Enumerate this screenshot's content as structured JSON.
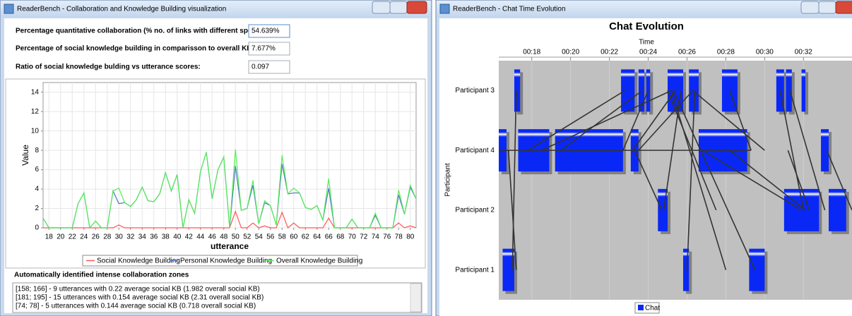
{
  "left_window": {
    "title": "ReaderBench - Collaboration and Knowledge Building visualization",
    "fields": [
      {
        "label": "Percentage quantitative collaboration (% no. of links with different speakers):",
        "value": "54.639%"
      },
      {
        "label": "Percentage of social knowledge building in comparisson to overall KB:",
        "value": "7.677%"
      },
      {
        "label": "Ratio of social knowledge bulding vs utterance scores:",
        "value": "0.097"
      }
    ],
    "chart": {
      "type": "line",
      "x_label": "utterance",
      "y_label": "Value",
      "xlim": [
        17,
        81
      ],
      "ylim": [
        0,
        15
      ],
      "xticks": [
        18,
        20,
        22,
        24,
        26,
        28,
        30,
        32,
        34,
        36,
        38,
        40,
        42,
        44,
        46,
        48,
        50,
        52,
        54,
        56,
        58,
        60,
        62,
        64,
        66,
        68,
        70,
        72,
        74,
        76,
        78,
        80
      ],
      "yticks": [
        0,
        2,
        4,
        6,
        8,
        10,
        12,
        14
      ],
      "grid": true,
      "x": [
        17,
        18,
        19,
        20,
        21,
        22,
        23,
        24,
        25,
        26,
        27,
        28,
        29,
        30,
        31,
        32,
        33,
        34,
        35,
        36,
        37,
        38,
        39,
        40,
        41,
        42,
        43,
        44,
        45,
        46,
        47,
        48,
        49,
        50,
        51,
        52,
        53,
        54,
        55,
        56,
        57,
        58,
        59,
        60,
        61,
        62,
        63,
        64,
        65,
        66,
        67,
        68,
        69,
        70,
        71,
        72,
        73,
        74,
        75,
        76,
        77,
        78,
        79,
        80,
        81
      ],
      "series": [
        {
          "name": "Social Knowledge Building",
          "color": "#ff5555",
          "values": [
            0,
            0,
            0,
            0,
            0,
            0,
            0,
            0,
            0,
            0,
            0,
            0,
            0,
            0.3,
            0,
            0,
            0,
            0,
            0,
            0,
            0,
            0,
            0,
            0,
            0,
            0,
            0,
            0,
            0,
            0,
            0,
            0,
            0,
            1.7,
            0,
            0,
            0.5,
            0,
            0.2,
            0,
            0,
            1.6,
            0,
            0.5,
            0,
            0,
            0,
            0,
            0,
            1.0,
            0,
            0,
            0,
            0,
            0,
            0,
            0,
            0,
            0,
            0,
            0,
            0.5,
            0,
            0.2,
            0
          ]
        },
        {
          "name": "Personal Knowledge Building",
          "color": "#4f73c6",
          "values": [
            1.0,
            0,
            0,
            0,
            0,
            0,
            2.5,
            3.6,
            0,
            0.7,
            0,
            0,
            3.8,
            2.5,
            2.6,
            2.2,
            2.9,
            4.2,
            2.8,
            2.7,
            3.5,
            5.7,
            3.8,
            5.5,
            0,
            2.9,
            1.5,
            5.8,
            7.8,
            3.0,
            6.0,
            7.3,
            0,
            6.4,
            1.8,
            2.0,
            4.4,
            0.4,
            2.6,
            2.3,
            0.3,
            6.6,
            3.5,
            3.6,
            3.6,
            2.1,
            1.9,
            2.3,
            0.8,
            4.1,
            0,
            0,
            0,
            0.9,
            0,
            0,
            0,
            1.3,
            0,
            0,
            0,
            3.4,
            1.4,
            4.2,
            3.0
          ]
        },
        {
          "name": "Overall Knowledge Building",
          "color": "#55ee55",
          "values": [
            1.0,
            0,
            0,
            0,
            0,
            0,
            2.5,
            3.6,
            0,
            0.7,
            0,
            0,
            3.8,
            4.1,
            2.6,
            2.2,
            2.9,
            4.2,
            2.8,
            2.7,
            3.5,
            5.7,
            3.8,
            5.5,
            0,
            2.9,
            1.5,
            5.8,
            7.8,
            3.0,
            6.0,
            7.3,
            0,
            8.1,
            1.8,
            2.0,
            4.9,
            0.4,
            2.8,
            2.3,
            0.3,
            7.5,
            3.5,
            4.1,
            3.6,
            2.1,
            1.9,
            2.3,
            0.8,
            5.1,
            0,
            0,
            0,
            0.9,
            0,
            0,
            0,
            1.5,
            0,
            0,
            0,
            3.9,
            1.4,
            4.4,
            3.0
          ]
        }
      ]
    },
    "zones_title": "Automatically identified intense collaboration zones",
    "zones": [
      "[158; 166] - 9 utterances with 0.22 average social KB (1.982 overall social KB)",
      "[181; 195] - 15 utterances with 0.154 average social KB (2.31 overall social KB)",
      "[74; 78] - 5 utterances with 0.144 average social KB (0.718 overall social KB)"
    ]
  },
  "right_window": {
    "title": "ReaderBench - Chat Time Evolution",
    "chart": {
      "type": "timeline",
      "title": "Chat Evolution",
      "x_label": "Time",
      "y_label": "Participant",
      "participants": [
        "Participant 3",
        "Participant 4",
        "Participant 2",
        "Participant 1"
      ],
      "xlim": [
        16.3,
        34.5
      ],
      "xticks": [
        {
          "value": 18,
          "label": "00:18"
        },
        {
          "value": 20,
          "label": "00:20"
        },
        {
          "value": 22,
          "label": "00:22"
        },
        {
          "value": 24,
          "label": "00:24"
        },
        {
          "value": 26,
          "label": "00:26"
        },
        {
          "value": 28,
          "label": "00:28"
        },
        {
          "value": 30,
          "label": "00:30"
        },
        {
          "value": 32,
          "label": "00:32"
        }
      ],
      "grid": true,
      "series": [
        {
          "name": "Chat",
          "color": "#0a28f5",
          "blocks": [
            {
              "participant": 0,
              "start": 17.1,
              "end": 17.4
            },
            {
              "participant": 0,
              "start": 22.6,
              "end": 23.3
            },
            {
              "participant": 0,
              "start": 23.5,
              "end": 23.8
            },
            {
              "participant": 0,
              "start": 23.9,
              "end": 24.1
            },
            {
              "participant": 0,
              "start": 25.0,
              "end": 25.8
            },
            {
              "participant": 0,
              "start": 26.1,
              "end": 26.6
            },
            {
              "participant": 0,
              "start": 27.8,
              "end": 28.6
            },
            {
              "participant": 0,
              "start": 30.6,
              "end": 31.0
            },
            {
              "participant": 0,
              "start": 31.1,
              "end": 31.4
            },
            {
              "participant": 0,
              "start": 31.9,
              "end": 32.1
            },
            {
              "participant": 1,
              "start": 16.3,
              "end": 16.7
            },
            {
              "participant": 1,
              "start": 17.3,
              "end": 18.9
            },
            {
              "participant": 1,
              "start": 19.2,
              "end": 22.7
            },
            {
              "participant": 1,
              "start": 23.1,
              "end": 23.5
            },
            {
              "participant": 1,
              "start": 26.6,
              "end": 29.1
            },
            {
              "participant": 1,
              "start": 32.9,
              "end": 33.3
            },
            {
              "participant": 2,
              "start": 24.5,
              "end": 25.0
            },
            {
              "participant": 2,
              "start": 31.0,
              "end": 32.8
            },
            {
              "participant": 2,
              "start": 33.3,
              "end": 34.2
            },
            {
              "participant": 3,
              "start": 16.5,
              "end": 17.1
            },
            {
              "participant": 3,
              "start": 25.8,
              "end": 26.1
            },
            {
              "participant": 3,
              "start": 29.2,
              "end": 30.0
            }
          ]
        }
      ],
      "links": [
        {
          "from": [
            16.3,
            1
          ],
          "to": [
            29.3,
            1
          ]
        },
        {
          "from": [
            17.2,
            0
          ],
          "to": [
            17.0,
            3
          ]
        },
        {
          "from": [
            16.8,
            1
          ],
          "to": [
            17.2,
            3
          ]
        },
        {
          "from": [
            17.8,
            1
          ],
          "to": [
            22.8,
            0
          ]
        },
        {
          "from": [
            18.5,
            1
          ],
          "to": [
            25.2,
            0
          ]
        },
        {
          "from": [
            19.5,
            1
          ],
          "to": [
            23.7,
            0
          ]
        },
        {
          "from": [
            22.7,
            1
          ],
          "to": [
            24.0,
            0
          ]
        },
        {
          "from": [
            23.2,
            1
          ],
          "to": [
            25.4,
            0
          ]
        },
        {
          "from": [
            23.3,
            1
          ],
          "to": [
            24.7,
            2
          ]
        },
        {
          "from": [
            23.5,
            1
          ],
          "to": [
            26.3,
            0
          ]
        },
        {
          "from": [
            24.8,
            2
          ],
          "to": [
            25.7,
            0
          ]
        },
        {
          "from": [
            25.2,
            0
          ],
          "to": [
            28.0,
            3
          ]
        },
        {
          "from": [
            25.3,
            0
          ],
          "to": [
            29.5,
            3
          ]
        },
        {
          "from": [
            26.3,
            0
          ],
          "to": [
            30.0,
            1
          ]
        },
        {
          "from": [
            26.4,
            0
          ],
          "to": [
            26.0,
            3
          ]
        },
        {
          "from": [
            28.2,
            0
          ],
          "to": [
            29.3,
            1
          ]
        },
        {
          "from": [
            26.8,
            1
          ],
          "to": [
            31.9,
            2
          ]
        },
        {
          "from": [
            28.2,
            1
          ],
          "to": [
            32.1,
            2
          ]
        },
        {
          "from": [
            30.8,
            0
          ],
          "to": [
            32.0,
            2
          ]
        },
        {
          "from": [
            31.3,
            0
          ],
          "to": [
            33.1,
            2
          ]
        },
        {
          "from": [
            33.2,
            1
          ],
          "to": [
            34.5,
            2
          ]
        },
        {
          "from": [
            31.2,
            1
          ],
          "to": [
            32.3,
            2
          ]
        },
        {
          "from": [
            25.0,
            0
          ],
          "to": [
            27.5,
            2
          ]
        }
      ]
    }
  }
}
